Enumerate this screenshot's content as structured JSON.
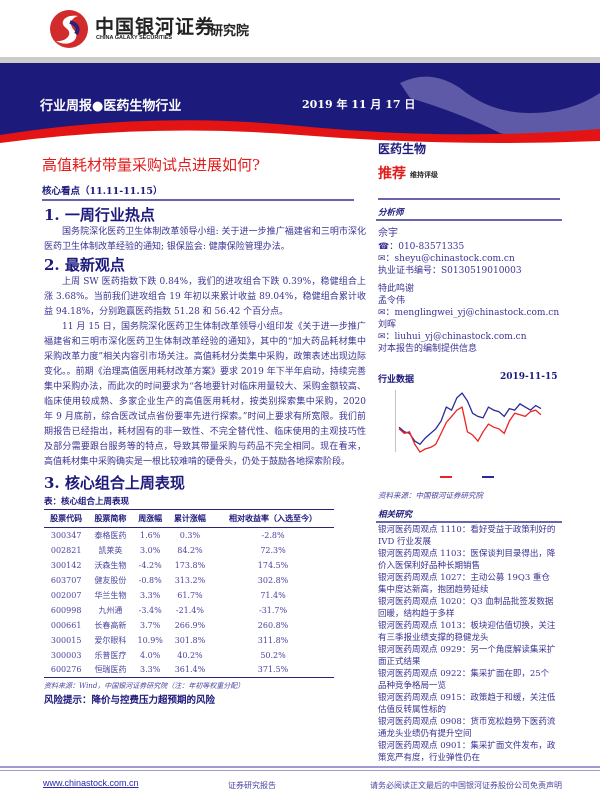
{
  "header": {
    "logo_cn": "中国银河证券",
    "logo_en": "CHINA GALAXY SECURITIES",
    "logo_institute": "研究院",
    "report_type": "行业周报●医药生物行业",
    "date": "2019 年 11 月 17 日"
  },
  "title": "高值耗材带量采购试点进展如何?",
  "core": {
    "heading": "核心看点（11.11-11.15）"
  },
  "sections": [
    {
      "heading": "1. 一周行业热点",
      "paragraphs": [
        "国务院深化医药卫生体制改革领导小组: 关于进一步推广福建省和三明市深化医药卫生体制改革经验的通知; 银保监会: 健康保险管理办法。"
      ]
    },
    {
      "heading": "2. 最新观点",
      "paragraphs": [
        "上周 SW 医药指数下跌 0.84%，我们的进攻组合下跌 0.39%，稳健组合上涨 3.68%。当前我们进攻组合 19 年初以来累计收益 89.04%，稳健组合累计收益 94.18%，分别跑赢医药指数 51.28 和 56.42 个百分点。",
        "11 月 15 日，国务院深化医药卫生体制改革领导小组印发《关于进一步推广福建省和三明市深化医药卫生体制改革经验的通知》，其中的“加大药品耗材集中采购改革力度”相关内容引市场关注。高值耗材分类集中采购，政策表述出现边际变化。。前期《治理高值医用耗材改革方案》要求 2019 年下半年启动，持续完善集中采购办法，而此次的时间要求为“各地要针对临床用量较大、采购金额较高、临床使用较成熟、多家企业生产的高值医用耗材，按类别探索集中采购，2020 年 9 月底前，综合医改试点省份要率先进行探索。”时间上要求有所宽限。我们前期报告已经指出，耗材固有的非一致性、不完全替代性、临床使用的主观技巧性及部分需要跟台服务等的特点，导致其带量采购与药品不完全相同。现在看来，高值耗材集中采购确实是一根比较难啃的硬骨头，仍处于鼓励各地探索阶段。"
      ]
    },
    {
      "heading": "3. 核心组合上周表现"
    }
  ],
  "table": {
    "caption": "表：核心组合上周表现",
    "columns": [
      "股票代码",
      "股票简称",
      "周涨幅",
      "累计涨幅",
      "相对收益率（入选至今）"
    ],
    "rows": [
      [
        "300347",
        "泰格医药",
        "1.6%",
        "0.3%",
        "-2.8%"
      ],
      [
        "002821",
        "凯莱英",
        "3.0%",
        "84.2%",
        "72.3%"
      ],
      [
        "300142",
        "沃森生物",
        "-4.2%",
        "173.8%",
        "174.5%"
      ],
      [
        "603707",
        "健友股份",
        "-0.8%",
        "313.2%",
        "302.8%"
      ],
      [
        "002007",
        "华兰生物",
        "3.3%",
        "61.7%",
        "71.4%"
      ],
      [
        "600998",
        "九州通",
        "-3.4%",
        "-21.4%",
        "-31.7%"
      ],
      [
        "000661",
        "长春高新",
        "3.7%",
        "266.9%",
        "260.8%"
      ],
      [
        "300015",
        "爱尔眼科",
        "10.9%",
        "301.8%",
        "311.8%"
      ],
      [
        "300003",
        "乐普医疗",
        "4.0%",
        "40.2%",
        "50.2%"
      ],
      [
        "600276",
        "恒瑞医药",
        "3.3%",
        "361.4%",
        "371.5%"
      ]
    ],
    "source": "资料来源：Wind，中国银河证券研究院（注：年初等权重分配）"
  },
  "risk": "风险提示：降价与控费压力超预期的风险",
  "sidebar": {
    "industry": "医药生物",
    "rating": "推荐",
    "rating_note": "维持评级",
    "analyst_heading": "分析师",
    "analyst": {
      "name": "佘宇",
      "phone": "010-83571335",
      "email": "sheyu@chinastock.com.cn",
      "license": "执业证书编号：S0130519010003"
    },
    "thanks": "特此鸣谢",
    "contributors": [
      {
        "name": "孟令伟",
        "email": "menglingwei_yj@chinastock.com.cn"
      },
      {
        "name": "刘晖",
        "email": "liuhui_yj@chinastock.com.cn"
      }
    ],
    "thanks_note": "对本报告的编制提供信息",
    "data_heading": "行业数据",
    "data_date": "2019-11-15",
    "chart_source": "资料来源：中国银河证券研究院",
    "related_heading": "相关研究",
    "related": [
      "银河医药周观点 1110：看好受益于政策利好的 IVD 行业发展",
      "银河医药周观点 1103：医保谈判目录得出，降价入医保利好品种长期销售",
      "银河医药周观点 1027：主动公募 19Q3 重仓集中度达新高，抱团趋势延续",
      "银河医药周观点 1020：Q3 血制品批签发数据回暖，结构趋于多样",
      "银河医药周观点 1013：板块迎估值切换，关注有三季报业绩支撑的稳健龙头",
      "银河医药周观点 0929：另一个角度解读集采扩面正式结果",
      "银河医药周观点 0922：集采扩面在即，25个品种竞争格局一览",
      "银河医药周观点 0915：政策趋于和缓，关注低估值反转属性标的",
      "银河医药周观点 0908：货币宽松趋势下医药流通龙头业绩仍有提升空间",
      "银河医药周观点 0901：集采扩面文件发布，政策宽严有度，行业弹性仍在"
    ]
  },
  "chart_data": {
    "type": "line",
    "ylim": [
      -15,
      25
    ],
    "series": [
      {
        "color": "#2a2a9a",
        "values": [
          1,
          -2,
          -3,
          -8,
          -10,
          -6,
          -3,
          0,
          5,
          14,
          12,
          20,
          23,
          18,
          10,
          8,
          7,
          14,
          12,
          11,
          8,
          13,
          12,
          16,
          14,
          12,
          15,
          13
        ]
      },
      {
        "color": "#ee2222",
        "values": [
          0,
          -3,
          -2,
          -10,
          -15,
          -13,
          -12,
          -10,
          -3,
          4,
          8,
          12,
          14,
          -2,
          -4,
          -8,
          -2,
          3,
          1,
          0,
          -3,
          5,
          10,
          9,
          8,
          11,
          12,
          9
        ]
      }
    ]
  },
  "footer": {
    "url": "www.chinastock.com.cn",
    "center": "证券研究报告",
    "right": "请务必阅读正文最后的中国银河证券股份公司免责声明"
  }
}
